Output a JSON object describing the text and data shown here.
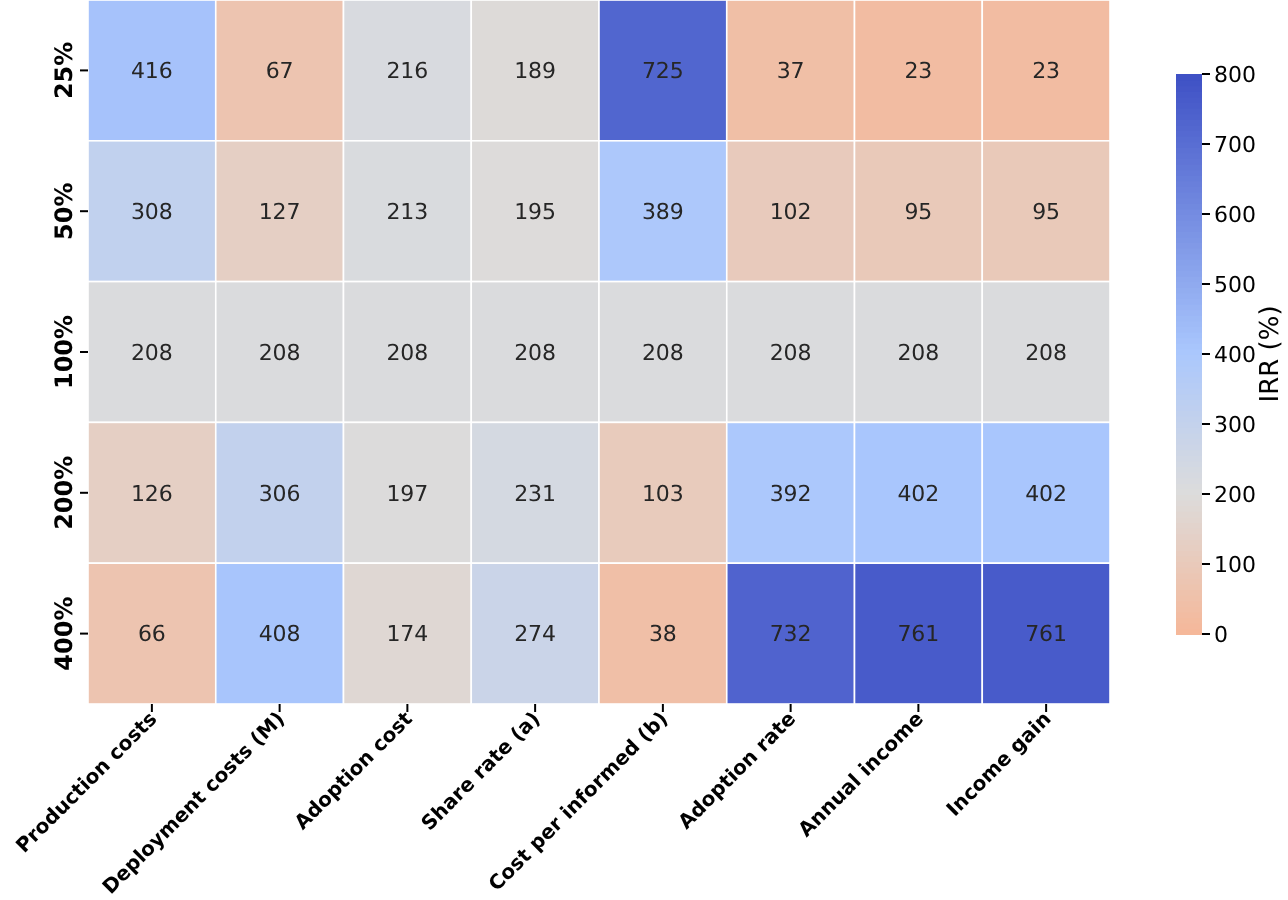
{
  "chart_data": {
    "type": "heatmap",
    "categories": [
      "Production costs",
      "Deployment costs (M)",
      "Adoption cost",
      "Share rate (a)",
      "Cost per informed (b)",
      "Adoption rate",
      "Annual income",
      "Income gain"
    ],
    "y_categories": [
      "25%",
      "50%",
      "100%",
      "200%",
      "400%"
    ],
    "cells": [
      [
        416,
        67,
        216,
        189,
        725,
        37,
        23,
        23
      ],
      [
        308,
        127,
        213,
        195,
        389,
        102,
        95,
        95
      ],
      [
        208,
        208,
        208,
        208,
        208,
        208,
        208,
        208
      ],
      [
        126,
        306,
        197,
        231,
        103,
        392,
        402,
        402
      ],
      [
        66,
        408,
        174,
        274,
        38,
        732,
        761,
        761
      ]
    ],
    "data_labels": true,
    "clabel": "IRR (%)",
    "clim": [
      0,
      800
    ],
    "cticks": [
      0,
      100,
      200,
      300,
      400,
      500,
      600,
      700,
      800
    ]
  }
}
